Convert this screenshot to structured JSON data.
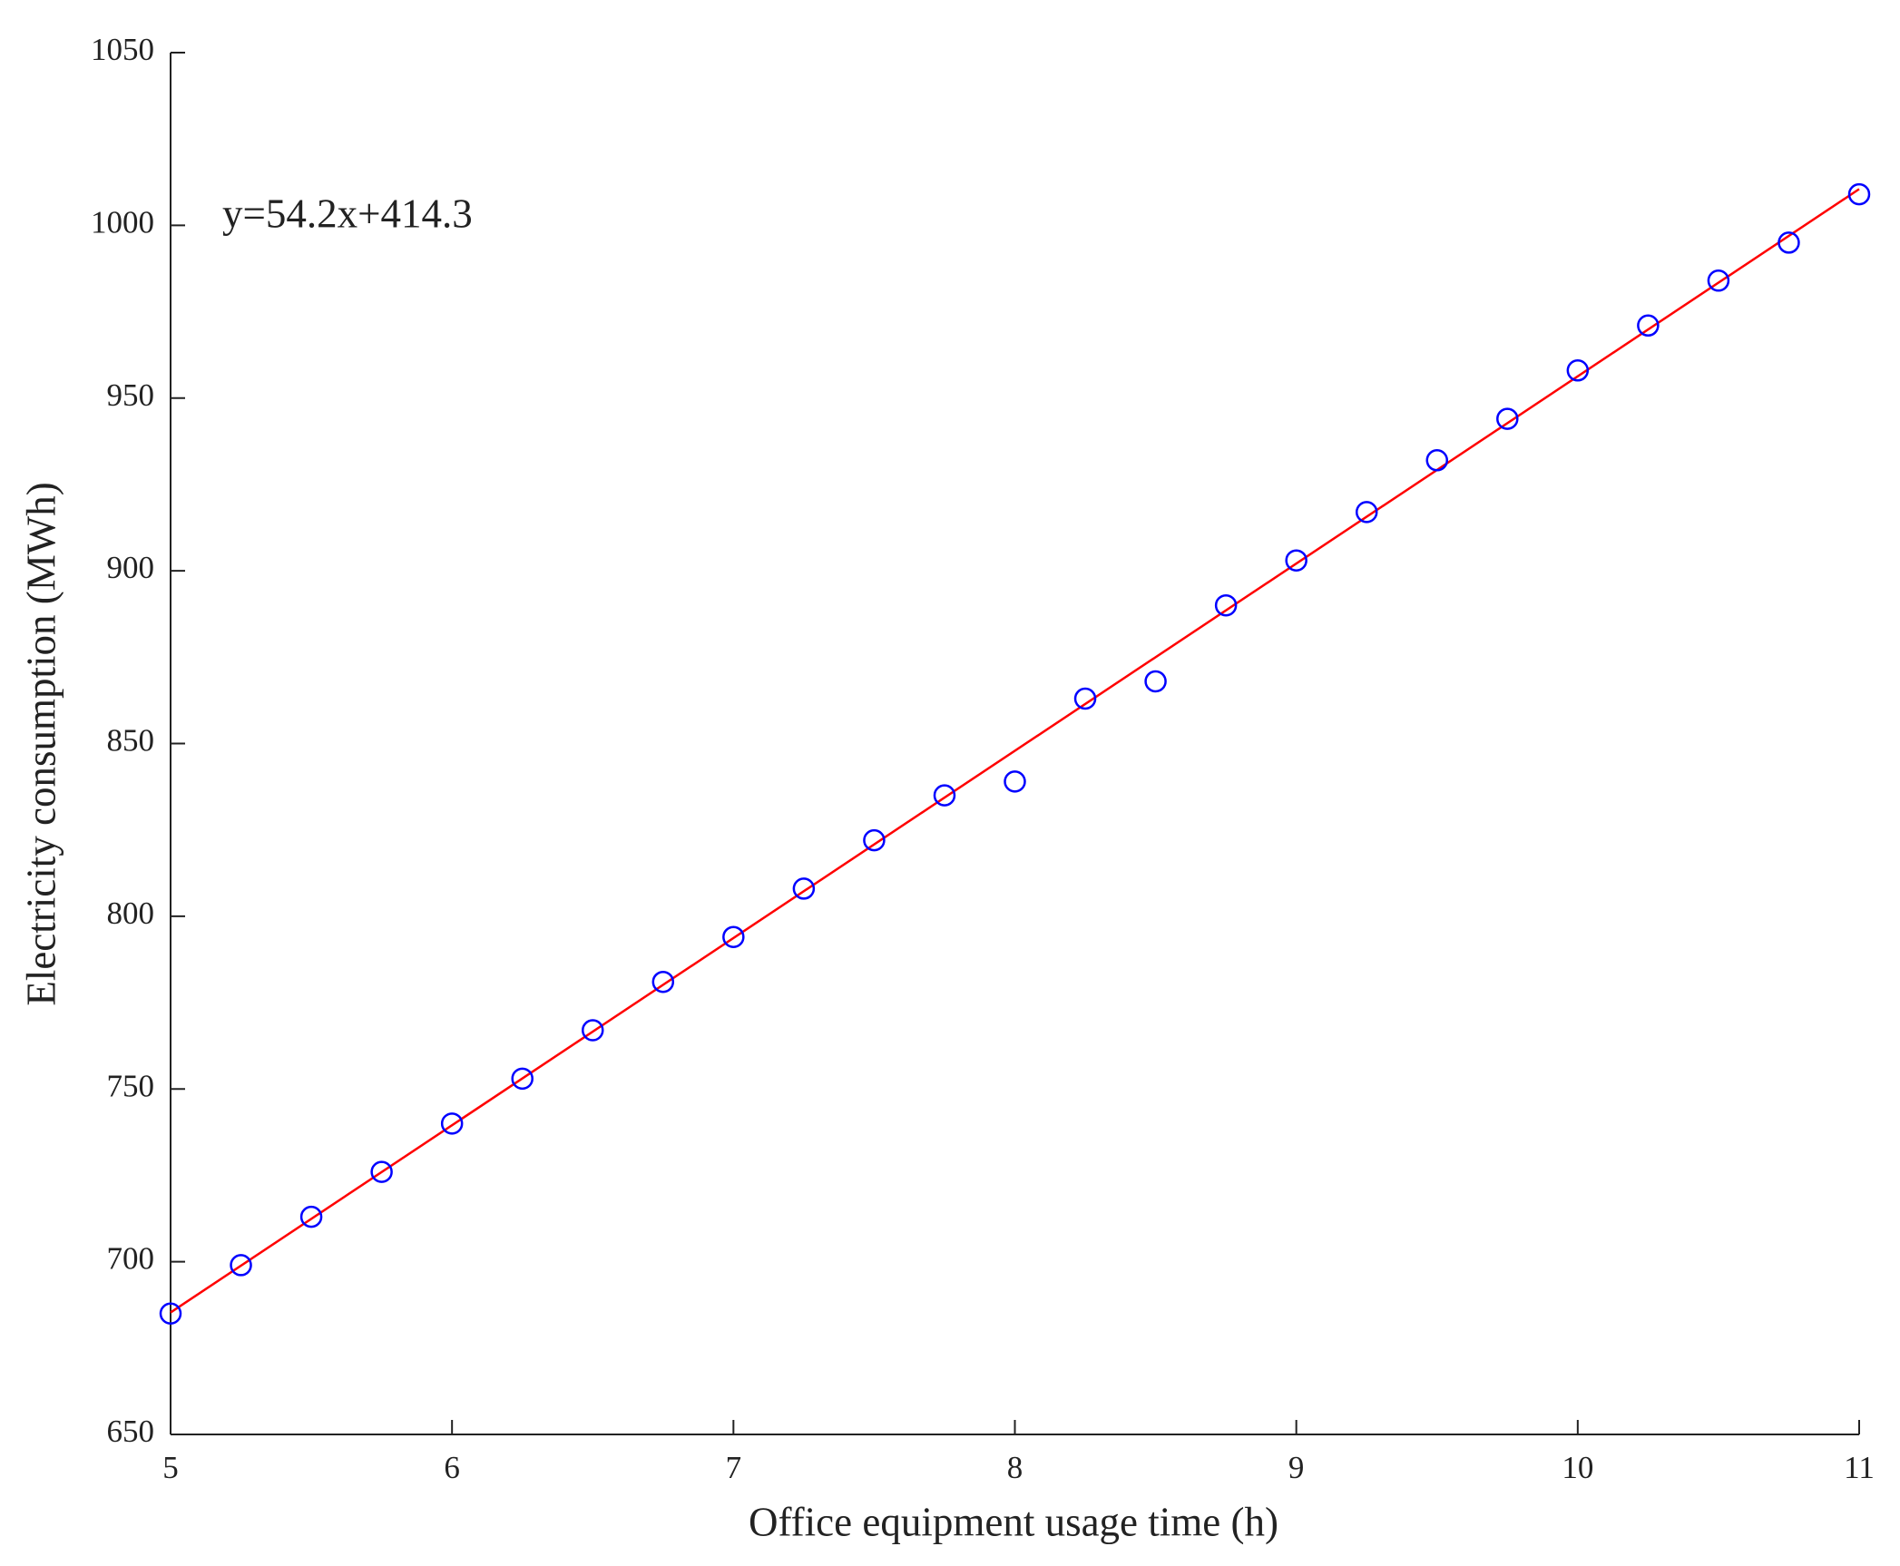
{
  "chart_data": {
    "type": "scatter",
    "x_label": "Office equipment usage time (h)",
    "y_label": "Electricity consumption (MWh)",
    "annotation": "y=54.2x+414.3",
    "x": [
      5,
      5.25,
      5.5,
      5.75,
      6,
      6.25,
      6.5,
      6.75,
      7,
      7.25,
      7.5,
      7.75,
      8,
      8.25,
      8.5,
      8.75,
      9,
      9.25,
      9.5,
      9.75,
      10,
      10.25,
      10.5,
      10.75,
      11
    ],
    "values": [
      685,
      699,
      713,
      726,
      740,
      753,
      767,
      781,
      794,
      808,
      822,
      835,
      839,
      863,
      868,
      890,
      903,
      917,
      932,
      944,
      958,
      971,
      984,
      995,
      1009
    ],
    "color": "#0000ff",
    "fit_line": {
      "x": [
        5,
        11
      ],
      "values": [
        685.3,
        1010.5
      ],
      "color": "#ff0000"
    },
    "xlim": [
      5,
      11
    ],
    "xticks": [
      5,
      6,
      7,
      8,
      9,
      10,
      11
    ],
    "ylim": [
      650,
      1050
    ],
    "yticks": [
      650,
      700,
      750,
      800,
      850,
      900,
      950,
      1000,
      1050
    ],
    "grid": false
  }
}
